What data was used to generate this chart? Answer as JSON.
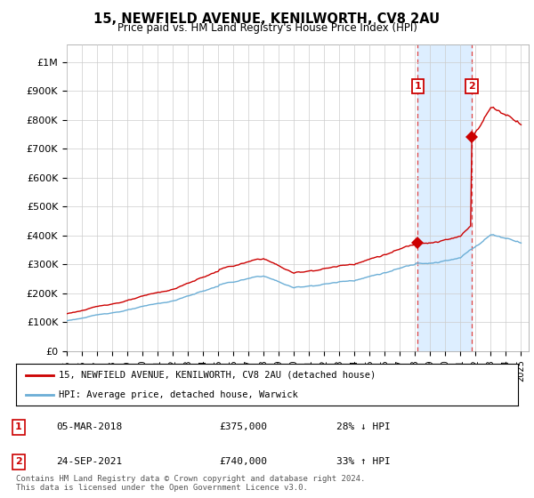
{
  "title": "15, NEWFIELD AVENUE, KENILWORTH, CV8 2AU",
  "subtitle": "Price paid vs. HM Land Registry's House Price Index (HPI)",
  "yticks": [
    0,
    100000,
    200000,
    300000,
    400000,
    500000,
    600000,
    700000,
    800000,
    900000,
    1000000
  ],
  "ytick_labels": [
    "£0",
    "£100K",
    "£200K",
    "£300K",
    "£400K",
    "£500K",
    "£600K",
    "£700K",
    "£800K",
    "£900K",
    "£1M"
  ],
  "ylim": [
    0,
    1060000
  ],
  "hpi_color": "#6baed6",
  "price_color": "#cc0000",
  "sale1_year": 2018.17,
  "sale1_price": 375000,
  "sale2_year": 2021.73,
  "sale2_price": 740000,
  "legend_addr": "15, NEWFIELD AVENUE, KENILWORTH, CV8 2AU (detached house)",
  "legend_hpi": "HPI: Average price, detached house, Warwick",
  "note1_label": "1",
  "note1_date": "05-MAR-2018",
  "note1_price": "£375,000",
  "note1_rel": "28% ↓ HPI",
  "note2_label": "2",
  "note2_date": "24-SEP-2021",
  "note2_price": "£740,000",
  "note2_rel": "33% ↑ HPI",
  "footer": "Contains HM Land Registry data © Crown copyright and database right 2024.\nThis data is licensed under the Open Government Licence v3.0.",
  "bg": "#ffffff",
  "grid_color": "#cccccc",
  "shade_color": "#ddeeff"
}
